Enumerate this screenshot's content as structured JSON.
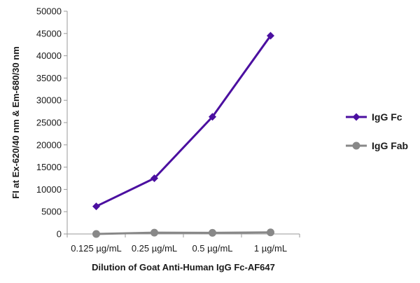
{
  "chart_data": {
    "type": "line",
    "categories": [
      "0.125 µg/mL",
      "0.25 µg/mL",
      "0.5 µg/mL",
      "1 µg/mL"
    ],
    "series": [
      {
        "name": "IgG Fc",
        "values": [
          6200,
          12500,
          26300,
          44500
        ],
        "color": "#4b0fa0",
        "marker": "diamond"
      },
      {
        "name": "IgG Fab",
        "values": [
          0,
          300,
          250,
          350
        ],
        "color": "#888888",
        "marker": "circle"
      }
    ],
    "xlabel": "Dilution of Goat Anti-Human IgG Fc-AF647",
    "ylabel": "FI at Ex-620/40 nm & Em-680/30 nm",
    "ylim": [
      0,
      50000
    ],
    "yticks": [
      "0",
      "5000",
      "10000",
      "15000",
      "20000",
      "25000",
      "30000",
      "35000",
      "40000",
      "45000",
      "50000"
    ],
    "grid": false,
    "legend_position": "right"
  }
}
